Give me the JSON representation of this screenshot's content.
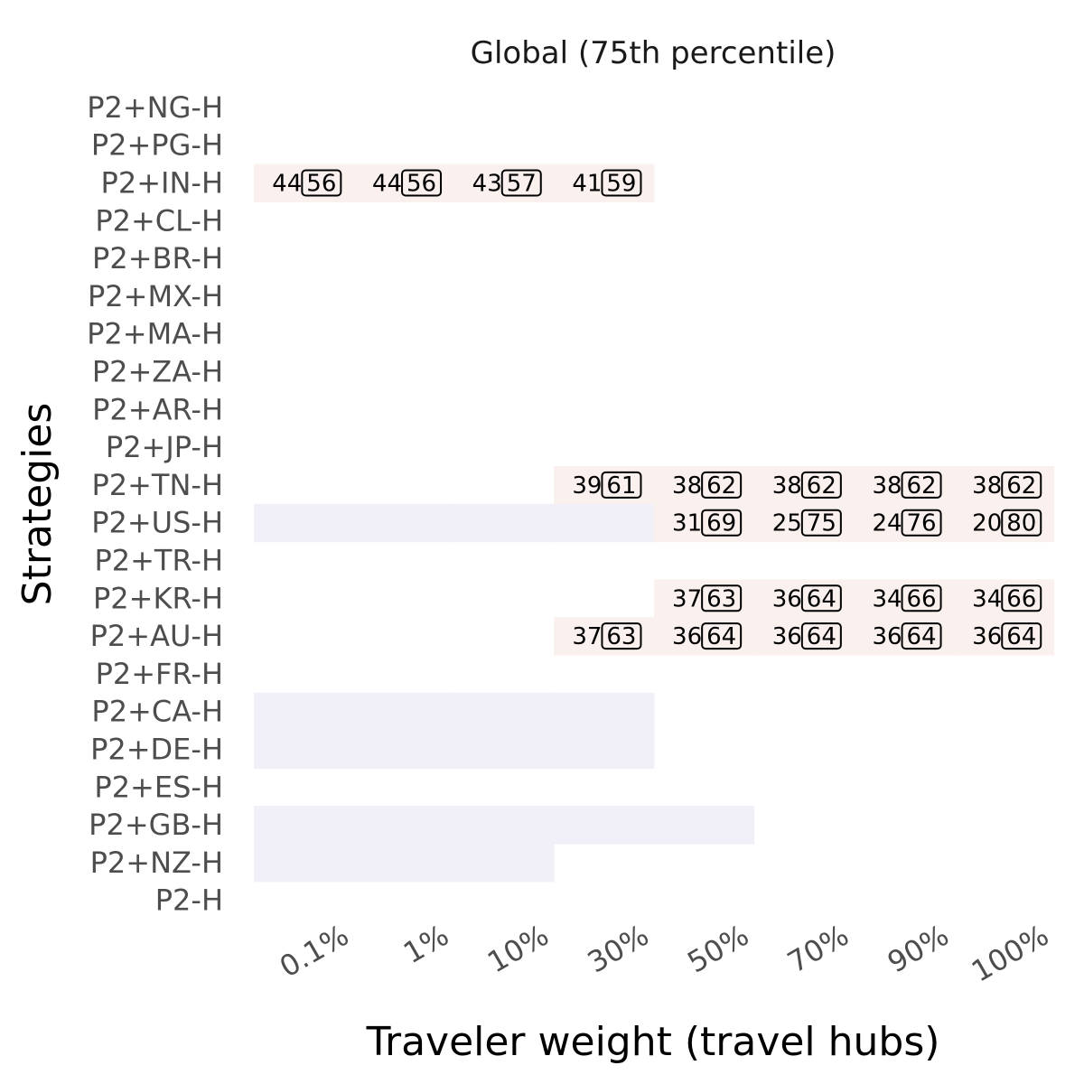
{
  "chart_data": {
    "type": "heatmap",
    "title": "Global (75th percentile)",
    "xlabel": "Traveler weight (travel hubs)",
    "ylabel": "Strategies",
    "x_categories": [
      "0.1%",
      "1%",
      "10%",
      "30%",
      "50%",
      "70%",
      "90%",
      "100%"
    ],
    "y_categories": [
      "P2+NG-H",
      "P2+PG-H",
      "P2+IN-H",
      "P2+CL-H",
      "P2+BR-H",
      "P2+MX-H",
      "P2+MA-H",
      "P2+ZA-H",
      "P2+AR-H",
      "P2+JP-H",
      "P2+TN-H",
      "P2+US-H",
      "P2+TR-H",
      "P2+KR-H",
      "P2+AU-H",
      "P2+FR-H",
      "P2+CA-H",
      "P2+DE-H",
      "P2+ES-H",
      "P2+GB-H",
      "P2+NZ-H",
      "P2-H"
    ],
    "colors": {
      "warm": "#faf0ee",
      "cool": "#f1eff8"
    },
    "cells": [
      {
        "row": "P2+IN-H",
        "col": "0.1%",
        "fill": "warm",
        "left": "44",
        "right": "56"
      },
      {
        "row": "P2+IN-H",
        "col": "1%",
        "fill": "warm",
        "left": "44",
        "right": "56"
      },
      {
        "row": "P2+IN-H",
        "col": "10%",
        "fill": "warm",
        "left": "43",
        "right": "57"
      },
      {
        "row": "P2+IN-H",
        "col": "30%",
        "fill": "warm",
        "left": "41",
        "right": "59"
      },
      {
        "row": "P2+TN-H",
        "col": "30%",
        "fill": "warm",
        "left": "39",
        "right": "61"
      },
      {
        "row": "P2+TN-H",
        "col": "50%",
        "fill": "warm",
        "left": "38",
        "right": "62"
      },
      {
        "row": "P2+TN-H",
        "col": "70%",
        "fill": "warm",
        "left": "38",
        "right": "62"
      },
      {
        "row": "P2+TN-H",
        "col": "90%",
        "fill": "warm",
        "left": "38",
        "right": "62"
      },
      {
        "row": "P2+TN-H",
        "col": "100%",
        "fill": "warm",
        "left": "38",
        "right": "62"
      },
      {
        "row": "P2+US-H",
        "col": "0.1%",
        "fill": "cool"
      },
      {
        "row": "P2+US-H",
        "col": "1%",
        "fill": "cool"
      },
      {
        "row": "P2+US-H",
        "col": "10%",
        "fill": "cool"
      },
      {
        "row": "P2+US-H",
        "col": "30%",
        "fill": "cool"
      },
      {
        "row": "P2+US-H",
        "col": "50%",
        "fill": "warm",
        "left": "31",
        "right": "69"
      },
      {
        "row": "P2+US-H",
        "col": "70%",
        "fill": "warm",
        "left": "25",
        "right": "75"
      },
      {
        "row": "P2+US-H",
        "col": "90%",
        "fill": "warm",
        "left": "24",
        "right": "76"
      },
      {
        "row": "P2+US-H",
        "col": "100%",
        "fill": "warm",
        "left": "20",
        "right": "80"
      },
      {
        "row": "P2+KR-H",
        "col": "50%",
        "fill": "warm",
        "left": "37",
        "right": "63"
      },
      {
        "row": "P2+KR-H",
        "col": "70%",
        "fill": "warm",
        "left": "36",
        "right": "64"
      },
      {
        "row": "P2+KR-H",
        "col": "90%",
        "fill": "warm",
        "left": "34",
        "right": "66"
      },
      {
        "row": "P2+KR-H",
        "col": "100%",
        "fill": "warm",
        "left": "34",
        "right": "66"
      },
      {
        "row": "P2+AU-H",
        "col": "30%",
        "fill": "warm",
        "left": "37",
        "right": "63"
      },
      {
        "row": "P2+AU-H",
        "col": "50%",
        "fill": "warm",
        "left": "36",
        "right": "64"
      },
      {
        "row": "P2+AU-H",
        "col": "70%",
        "fill": "warm",
        "left": "36",
        "right": "64"
      },
      {
        "row": "P2+AU-H",
        "col": "90%",
        "fill": "warm",
        "left": "36",
        "right": "64"
      },
      {
        "row": "P2+AU-H",
        "col": "100%",
        "fill": "warm",
        "left": "36",
        "right": "64"
      },
      {
        "row": "P2+CA-H",
        "col": "0.1%",
        "fill": "cool"
      },
      {
        "row": "P2+CA-H",
        "col": "1%",
        "fill": "cool"
      },
      {
        "row": "P2+CA-H",
        "col": "10%",
        "fill": "cool"
      },
      {
        "row": "P2+CA-H",
        "col": "30%",
        "fill": "cool"
      },
      {
        "row": "P2+DE-H",
        "col": "0.1%",
        "fill": "cool"
      },
      {
        "row": "P2+DE-H",
        "col": "1%",
        "fill": "cool"
      },
      {
        "row": "P2+DE-H",
        "col": "10%",
        "fill": "cool"
      },
      {
        "row": "P2+DE-H",
        "col": "30%",
        "fill": "cool"
      },
      {
        "row": "P2+GB-H",
        "col": "0.1%",
        "fill": "cool"
      },
      {
        "row": "P2+GB-H",
        "col": "1%",
        "fill": "cool"
      },
      {
        "row": "P2+GB-H",
        "col": "10%",
        "fill": "cool"
      },
      {
        "row": "P2+GB-H",
        "col": "30%",
        "fill": "cool"
      },
      {
        "row": "P2+GB-H",
        "col": "50%",
        "fill": "cool"
      },
      {
        "row": "P2+NZ-H",
        "col": "0.1%",
        "fill": "cool"
      },
      {
        "row": "P2+NZ-H",
        "col": "1%",
        "fill": "cool"
      },
      {
        "row": "P2+NZ-H",
        "col": "10%",
        "fill": "cool"
      }
    ]
  }
}
